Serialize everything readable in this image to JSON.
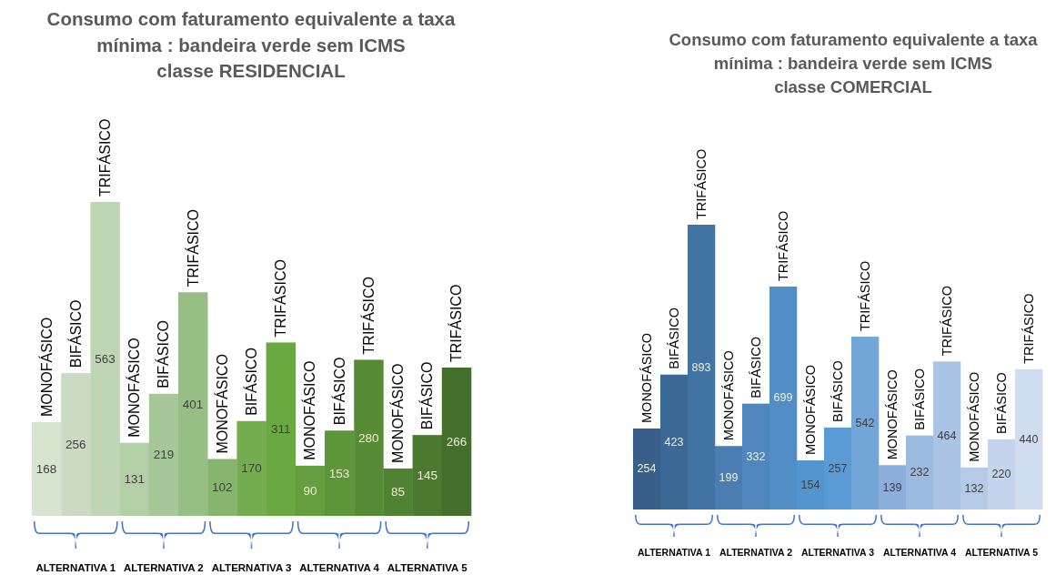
{
  "chart_data": [
    {
      "type": "bar",
      "title": "Consumo com faturamento equivalente a taxa\nmínima : bandeira verde sem ICMS\nclasse RESIDENCIAL",
      "categories": [
        "ALTERNATIVA 1",
        "ALTERNATIVA 2",
        "ALTERNATIVA 3",
        "ALTERNATIVA 4",
        "ALTERNATIVA 5"
      ],
      "series": [
        {
          "name": "MONOFÁSICO",
          "colors": [
            "#d7e4cf",
            "#b3cfa7",
            "#86b66e",
            "#649e3e",
            "#4f8232"
          ],
          "values": [
            168,
            131,
            102,
            90,
            85
          ]
        },
        {
          "name": "BIFÁSICO",
          "colors": [
            "#cadbc1",
            "#a6c797",
            "#74ad4f",
            "#5c953a",
            "#4a792f"
          ],
          "values": [
            256,
            219,
            170,
            153,
            145
          ]
        },
        {
          "name": "TRIFÁSICO",
          "colors": [
            "#bfd6b5",
            "#97bf85",
            "#6aa842",
            "#568c36",
            "#446e2b"
          ],
          "values": [
            563,
            401,
            311,
            280,
            266
          ]
        }
      ],
      "data_labels": true
    },
    {
      "type": "bar",
      "title": "Consumo com faturamento equivalente a taxa\nmínima : bandeira verde sem ICMS\nclasse COMERCIAL",
      "categories": [
        "ALTERNATIVA 1",
        "ALTERNATIVA 2",
        "ALTERNATIVA 3",
        "ALTERNATIVA 4",
        "ALTERNATIVA 5"
      ],
      "series": [
        {
          "name": "MONOFÁSICO",
          "colors": [
            "#375f89",
            "#4a7db1",
            "#5595cf",
            "#8aafdc",
            "#b5cae7"
          ],
          "values": [
            254,
            199,
            154,
            139,
            132
          ]
        },
        {
          "name": "BIFÁSICO",
          "colors": [
            "#3c6896",
            "#4e86bd",
            "#5b9bd5",
            "#9bbae0",
            "#c3d4ec"
          ],
          "values": [
            423,
            332,
            257,
            232,
            220
          ]
        },
        {
          "name": "TRIFÁSICO",
          "colors": [
            "#4174a3",
            "#518ec6",
            "#72a5d8",
            "#a9c4e5",
            "#d0dcf0"
          ],
          "values": [
            893,
            699,
            542,
            464,
            440
          ]
        }
      ],
      "data_labels": true
    }
  ]
}
